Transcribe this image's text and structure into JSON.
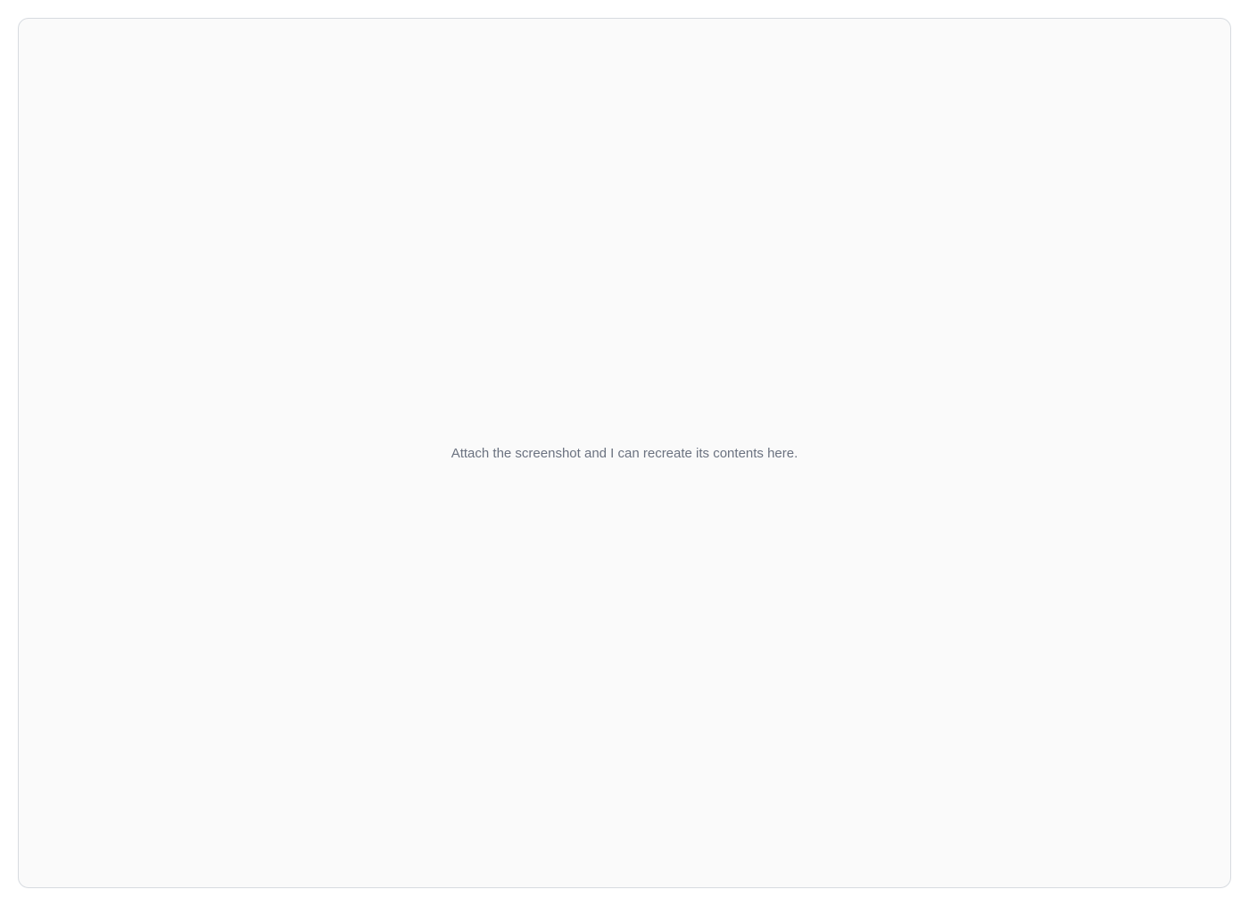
{
  "notice": {
    "message": "Attach the screenshot and I can recreate its contents here."
  }
}
